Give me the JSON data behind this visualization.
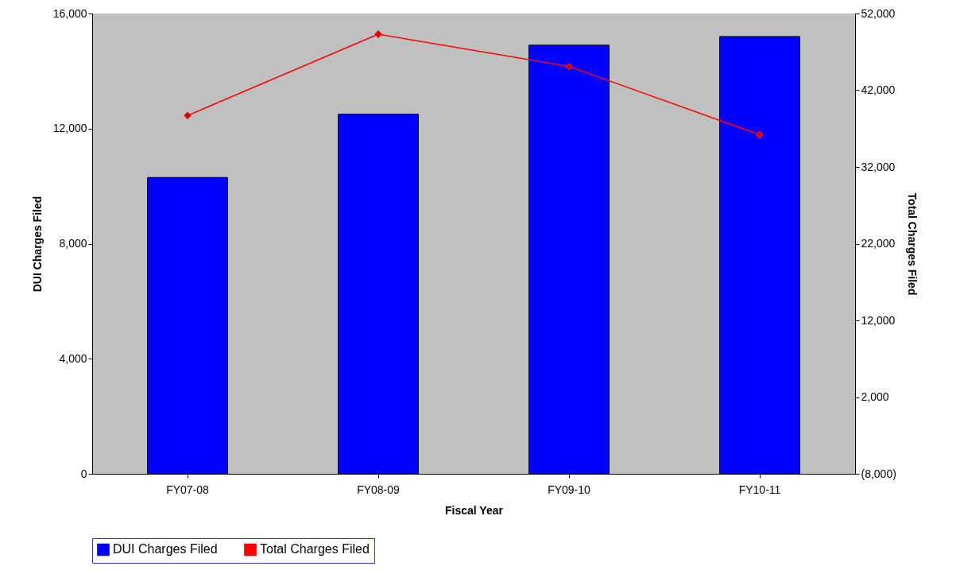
{
  "chart_data": {
    "type": "bar",
    "xlabel": "Fiscal Year",
    "ylabel": "DUI Charges Filed",
    "y2label": "Total Charges Filed",
    "categories": [
      "FY07-08",
      "FY08-09",
      "FY09-10",
      "FY10-11"
    ],
    "series": [
      {
        "name": "DUI Charges Filed",
        "color": "#0000ff",
        "values": [
          10300,
          12500,
          14900,
          15200
        ]
      },
      {
        "name": "Total Charges Filed",
        "type": "line",
        "axis": "y2",
        "color": "#ff0000",
        "values": [
          38700,
          49300,
          45100,
          36200
        ]
      }
    ],
    "ylim": [
      0,
      16000
    ],
    "yticks": [
      {
        "value": 0,
        "label": "0"
      },
      {
        "value": 4000,
        "label": "4,000"
      },
      {
        "value": 8000,
        "label": "8,000"
      },
      {
        "value": 12000,
        "label": "12,000"
      },
      {
        "value": 16000,
        "label": "16,000"
      }
    ],
    "y2lim": [
      -8000,
      52000
    ],
    "y2ticks": [
      {
        "value": -8000,
        "label": "(8,000)"
      },
      {
        "value": 2000,
        "label": "2,000"
      },
      {
        "value": 12000,
        "label": "12,000"
      },
      {
        "value": 22000,
        "label": "22,000"
      },
      {
        "value": 32000,
        "label": "32,000"
      },
      {
        "value": 42000,
        "label": "42,000"
      },
      {
        "value": 52000,
        "label": "52,000"
      }
    ],
    "marker": "diamond",
    "line_style": "solid",
    "grid": false,
    "legend": "bottom"
  }
}
